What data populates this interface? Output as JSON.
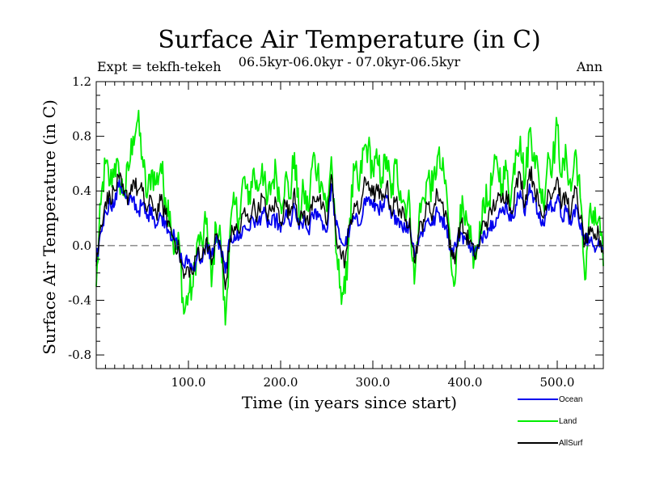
{
  "chart_data": {
    "type": "line",
    "title": "Surface Air Temperature (in C)",
    "subtitle": "06.5kyr-06.0kyr - 07.0kyr-06.5kyr",
    "left_label": "Expt = tekfh-tekeh",
    "right_label": "Ann",
    "xlabel": "Time (in years since start)",
    "ylabel": "Surface Air Temperature (in C)",
    "xlim": [
      0,
      550
    ],
    "ylim": [
      -0.9,
      1.2
    ],
    "xticks": [
      100,
      200,
      300,
      400,
      500
    ],
    "xtick_labels": [
      "100.0",
      "200.0",
      "300.0",
      "400.0",
      "500.0"
    ],
    "yticks": [
      -0.8,
      -0.4,
      0.0,
      0.4,
      0.8,
      1.2
    ],
    "ytick_labels": [
      "-0.8",
      "-0.4",
      "0.0",
      "0.4",
      "0.8",
      "1.2"
    ],
    "reference_line": 0.0,
    "anchor_x": [
      0,
      5,
      10,
      15,
      20,
      25,
      30,
      35,
      40,
      45,
      50,
      55,
      60,
      65,
      70,
      75,
      80,
      85,
      90,
      95,
      100,
      105,
      110,
      115,
      120,
      125,
      130,
      135,
      140,
      145,
      150,
      155,
      160,
      165,
      170,
      175,
      180,
      185,
      190,
      195,
      200,
      205,
      210,
      215,
      220,
      225,
      230,
      235,
      240,
      245,
      250,
      255,
      260,
      265,
      270,
      275,
      280,
      285,
      290,
      295,
      300,
      305,
      310,
      315,
      320,
      325,
      330,
      335,
      340,
      345,
      350,
      355,
      360,
      365,
      370,
      375,
      380,
      385,
      390,
      395,
      400,
      405,
      410,
      415,
      420,
      425,
      430,
      435,
      440,
      445,
      450,
      455,
      460,
      465,
      470,
      475,
      480,
      485,
      490,
      495,
      500,
      505,
      510,
      515,
      520,
      525,
      530,
      535,
      540,
      545,
      550
    ],
    "series": [
      {
        "name": "Ocean",
        "color": "#0000ee",
        "values": [
          -0.12,
          0.1,
          0.25,
          0.32,
          0.3,
          0.48,
          0.38,
          0.3,
          0.35,
          0.25,
          0.3,
          0.2,
          0.28,
          0.15,
          0.22,
          0.18,
          0.1,
          0.05,
          -0.05,
          -0.15,
          -0.1,
          -0.18,
          -0.05,
          -0.12,
          0.0,
          -0.08,
          0.05,
          -0.02,
          -0.2,
          0.03,
          0.08,
          0.05,
          0.14,
          0.12,
          0.2,
          0.15,
          0.25,
          0.18,
          0.15,
          0.2,
          0.1,
          0.22,
          0.15,
          0.28,
          0.12,
          0.18,
          0.1,
          0.22,
          0.25,
          0.18,
          0.1,
          0.45,
          0.15,
          0.05,
          0.0,
          0.12,
          0.2,
          0.15,
          0.3,
          0.35,
          0.28,
          0.3,
          0.25,
          0.35,
          0.2,
          0.22,
          0.18,
          0.12,
          0.15,
          -0.05,
          0.05,
          0.12,
          0.2,
          0.15,
          0.25,
          0.2,
          0.15,
          -0.05,
          0.0,
          0.1,
          0.05,
          0.02,
          -0.05,
          -0.02,
          0.1,
          0.12,
          0.18,
          0.2,
          0.25,
          0.3,
          0.18,
          0.3,
          0.4,
          0.22,
          0.45,
          0.35,
          0.2,
          0.15,
          0.3,
          0.28,
          0.35,
          0.2,
          0.25,
          0.15,
          0.3,
          0.12,
          0.08,
          0.02,
          0.0,
          0.05,
          -0.02
        ]
      },
      {
        "name": "Land",
        "color": "#00ee00",
        "values": [
          -0.3,
          0.3,
          0.6,
          0.45,
          0.6,
          0.5,
          0.38,
          0.55,
          0.8,
          0.92,
          0.65,
          0.35,
          0.55,
          0.45,
          0.6,
          0.35,
          0.25,
          -0.05,
          0.02,
          -0.5,
          -0.35,
          -0.3,
          0.05,
          0.0,
          0.2,
          -0.3,
          0.15,
          0.05,
          -0.58,
          0.1,
          0.3,
          0.2,
          0.5,
          0.3,
          0.55,
          0.4,
          0.6,
          0.3,
          0.45,
          0.55,
          0.3,
          0.5,
          0.35,
          0.68,
          0.2,
          0.4,
          0.25,
          0.65,
          0.55,
          0.45,
          0.25,
          0.65,
          -0.05,
          -0.3,
          -0.35,
          0.2,
          0.55,
          0.4,
          0.7,
          0.72,
          0.55,
          0.6,
          0.5,
          0.65,
          0.35,
          0.6,
          0.4,
          0.3,
          0.3,
          -0.28,
          0.2,
          0.35,
          0.5,
          0.4,
          0.65,
          0.55,
          0.4,
          -0.15,
          -0.2,
          0.3,
          0.15,
          0.05,
          -0.1,
          0.0,
          0.35,
          0.3,
          0.5,
          0.6,
          0.45,
          0.55,
          0.35,
          0.7,
          0.8,
          0.45,
          0.85,
          0.68,
          0.5,
          0.3,
          0.68,
          0.6,
          0.88,
          0.5,
          0.65,
          0.4,
          0.7,
          0.35,
          -0.25,
          0.25,
          0.15,
          0.2,
          -0.15
        ]
      },
      {
        "name": "AllSurf",
        "color": "#000000",
        "values": [
          -0.15,
          0.15,
          0.32,
          0.36,
          0.4,
          0.49,
          0.37,
          0.36,
          0.48,
          0.4,
          0.4,
          0.25,
          0.34,
          0.23,
          0.33,
          0.23,
          0.14,
          0.03,
          -0.04,
          -0.24,
          -0.16,
          -0.21,
          -0.02,
          -0.09,
          0.06,
          -0.14,
          0.08,
          0.0,
          -0.32,
          0.05,
          0.14,
          0.09,
          0.25,
          0.18,
          0.3,
          0.23,
          0.36,
          0.23,
          0.25,
          0.32,
          0.17,
          0.32,
          0.22,
          0.42,
          0.15,
          0.25,
          0.15,
          0.36,
          0.36,
          0.28,
          0.15,
          0.52,
          0.09,
          -0.06,
          -0.11,
          0.15,
          0.31,
          0.23,
          0.43,
          0.47,
          0.37,
          0.4,
          0.33,
          0.45,
          0.25,
          0.33,
          0.25,
          0.18,
          0.2,
          -0.12,
          0.1,
          0.19,
          0.3,
          0.23,
          0.39,
          0.31,
          0.23,
          -0.08,
          -0.06,
          0.17,
          0.09,
          0.03,
          -0.07,
          -0.01,
          0.18,
          0.18,
          0.28,
          0.33,
          0.33,
          0.4,
          0.24,
          0.43,
          0.52,
          0.3,
          0.56,
          0.45,
          0.29,
          0.2,
          0.41,
          0.38,
          0.5,
          0.29,
          0.36,
          0.23,
          0.42,
          0.2,
          0.01,
          0.08,
          0.05,
          0.09,
          -0.06
        ]
      }
    ],
    "legend": [
      {
        "label": "Ocean",
        "color": "#0000ee"
      },
      {
        "label": "Land",
        "color": "#00ee00"
      },
      {
        "label": "AllSurf",
        "color": "#000000"
      }
    ],
    "legend_position": "bottom-right"
  }
}
